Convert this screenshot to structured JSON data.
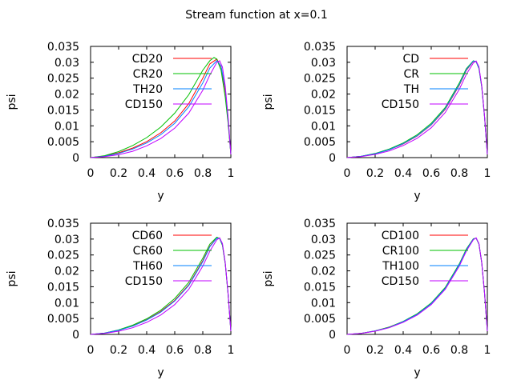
{
  "figure": {
    "title": "Stream function at x=0.1"
  },
  "chart_data": [
    {
      "type": "line",
      "xlabel": "y",
      "ylabel": "psi",
      "xlim": [
        0,
        1
      ],
      "ylim": [
        0,
        0.035
      ],
      "xticks": [
        "0",
        "0.2",
        "0.4",
        "0.6",
        "0.8",
        "1"
      ],
      "yticks": [
        "0",
        "0.005",
        "0.01",
        "0.015",
        "0.02",
        "0.025",
        "0.03",
        "0.035"
      ],
      "grid": false,
      "legend_position": "top-left",
      "series": [
        {
          "name": "CD20",
          "color": "#ff0000",
          "x": [
            0,
            0.1,
            0.2,
            0.3,
            0.4,
            0.5,
            0.6,
            0.7,
            0.8,
            0.85,
            0.9,
            0.93,
            0.96,
            0.98,
            1.0
          ],
          "y": [
            0,
            0.0005,
            0.0015,
            0.003,
            0.005,
            0.0078,
            0.0115,
            0.017,
            0.025,
            0.0295,
            0.031,
            0.0285,
            0.021,
            0.012,
            0.001
          ]
        },
        {
          "name": "CR20",
          "color": "#00c000",
          "x": [
            0,
            0.1,
            0.2,
            0.3,
            0.4,
            0.5,
            0.6,
            0.7,
            0.8,
            0.85,
            0.88,
            0.9,
            0.93,
            0.96,
            0.98,
            1.0
          ],
          "y": [
            0,
            0.0006,
            0.0019,
            0.0038,
            0.0063,
            0.0096,
            0.014,
            0.0198,
            0.0275,
            0.0305,
            0.0315,
            0.031,
            0.0275,
            0.019,
            0.011,
            0.001
          ]
        },
        {
          "name": "TH20",
          "color": "#0080ff",
          "x": [
            0,
            0.1,
            0.2,
            0.3,
            0.4,
            0.5,
            0.6,
            0.7,
            0.8,
            0.85,
            0.9,
            0.93,
            0.96,
            0.98,
            1.0
          ],
          "y": [
            0,
            0.0004,
            0.0013,
            0.0027,
            0.0046,
            0.0072,
            0.0108,
            0.016,
            0.0235,
            0.0282,
            0.0305,
            0.0288,
            0.0218,
            0.0125,
            0.001
          ]
        },
        {
          "name": "CD150",
          "color": "#c000ff",
          "x": [
            0,
            0.1,
            0.2,
            0.3,
            0.4,
            0.5,
            0.6,
            0.7,
            0.8,
            0.85,
            0.9,
            0.92,
            0.94,
            0.96,
            0.98,
            1.0
          ],
          "y": [
            0,
            0.0003,
            0.0009,
            0.002,
            0.0037,
            0.006,
            0.0093,
            0.014,
            0.0212,
            0.026,
            0.03,
            0.0305,
            0.0285,
            0.0225,
            0.013,
            0.001
          ]
        }
      ]
    },
    {
      "type": "line",
      "xlabel": "y",
      "ylabel": "psi",
      "xlim": [
        0,
        1
      ],
      "ylim": [
        0,
        0.035
      ],
      "xticks": [
        "0",
        "0.2",
        "0.4",
        "0.6",
        "0.8",
        "1"
      ],
      "yticks": [
        "0",
        "0.005",
        "0.01",
        "0.015",
        "0.02",
        "0.025",
        "0.03",
        "0.035"
      ],
      "grid": false,
      "legend_position": "top-left",
      "series": [
        {
          "name": "CD",
          "color": "#ff0000",
          "x": [
            0,
            0.1,
            0.2,
            0.3,
            0.4,
            0.5,
            0.6,
            0.7,
            0.8,
            0.85,
            0.9,
            0.92,
            0.94,
            0.96,
            0.98,
            1.0
          ],
          "y": [
            0,
            0.0004,
            0.0012,
            0.0025,
            0.0043,
            0.0068,
            0.0103,
            0.0152,
            0.0228,
            0.0275,
            0.0303,
            0.0302,
            0.0283,
            0.0225,
            0.013,
            0.001
          ]
        },
        {
          "name": "CR",
          "color": "#00c000",
          "x": [
            0,
            0.1,
            0.2,
            0.3,
            0.4,
            0.5,
            0.6,
            0.7,
            0.8,
            0.85,
            0.9,
            0.92,
            0.94,
            0.96,
            0.98,
            1.0
          ],
          "y": [
            0,
            0.0004,
            0.0013,
            0.0027,
            0.0046,
            0.0072,
            0.0108,
            0.0158,
            0.0235,
            0.028,
            0.0305,
            0.0302,
            0.028,
            0.0222,
            0.0128,
            0.001
          ]
        },
        {
          "name": "TH",
          "color": "#0080ff",
          "x": [
            0,
            0.1,
            0.2,
            0.3,
            0.4,
            0.5,
            0.6,
            0.7,
            0.8,
            0.85,
            0.9,
            0.92,
            0.94,
            0.96,
            0.98,
            1.0
          ],
          "y": [
            0,
            0.0004,
            0.0012,
            0.0025,
            0.0044,
            0.0069,
            0.0104,
            0.0154,
            0.023,
            0.0277,
            0.0304,
            0.0302,
            0.0282,
            0.0224,
            0.0129,
            0.001
          ]
        },
        {
          "name": "CD150",
          "color": "#c000ff",
          "x": [
            0,
            0.1,
            0.2,
            0.3,
            0.4,
            0.5,
            0.6,
            0.7,
            0.8,
            0.85,
            0.9,
            0.92,
            0.94,
            0.96,
            0.98,
            1.0
          ],
          "y": [
            0,
            0.0003,
            0.001,
            0.0021,
            0.0038,
            0.0061,
            0.0094,
            0.0142,
            0.0215,
            0.0262,
            0.0298,
            0.0304,
            0.0286,
            0.0226,
            0.0131,
            0.001
          ]
        }
      ]
    },
    {
      "type": "line",
      "xlabel": "y",
      "ylabel": "psi",
      "xlim": [
        0,
        1
      ],
      "ylim": [
        0,
        0.035
      ],
      "xticks": [
        "0",
        "0.2",
        "0.4",
        "0.6",
        "0.8",
        "1"
      ],
      "yticks": [
        "0",
        "0.005",
        "0.01",
        "0.015",
        "0.02",
        "0.025",
        "0.03",
        "0.035"
      ],
      "grid": false,
      "legend_position": "top-left",
      "series": [
        {
          "name": "CD60",
          "color": "#ff0000",
          "x": [
            0,
            0.1,
            0.2,
            0.3,
            0.4,
            0.5,
            0.6,
            0.7,
            0.8,
            0.85,
            0.9,
            0.92,
            0.94,
            0.96,
            0.98,
            1.0
          ],
          "y": [
            0,
            0.0004,
            0.0013,
            0.0027,
            0.0046,
            0.0072,
            0.0107,
            0.0156,
            0.0232,
            0.0278,
            0.0304,
            0.0302,
            0.0282,
            0.0224,
            0.0129,
            0.001
          ]
        },
        {
          "name": "CR60",
          "color": "#00c000",
          "x": [
            0,
            0.1,
            0.2,
            0.3,
            0.4,
            0.5,
            0.6,
            0.7,
            0.8,
            0.85,
            0.9,
            0.92,
            0.94,
            0.96,
            0.98,
            1.0
          ],
          "y": [
            0,
            0.0004,
            0.0014,
            0.0029,
            0.0049,
            0.0076,
            0.0113,
            0.0164,
            0.024,
            0.0284,
            0.0306,
            0.0302,
            0.028,
            0.0222,
            0.0128,
            0.001
          ]
        },
        {
          "name": "TH60",
          "color": "#0080ff",
          "x": [
            0,
            0.1,
            0.2,
            0.3,
            0.4,
            0.5,
            0.6,
            0.7,
            0.8,
            0.85,
            0.9,
            0.92,
            0.94,
            0.96,
            0.98,
            1.0
          ],
          "y": [
            0,
            0.0004,
            0.0013,
            0.0026,
            0.0045,
            0.007,
            0.0105,
            0.0154,
            0.0229,
            0.0276,
            0.0303,
            0.0302,
            0.0283,
            0.0225,
            0.013,
            0.001
          ]
        },
        {
          "name": "CD150",
          "color": "#c000ff",
          "x": [
            0,
            0.1,
            0.2,
            0.3,
            0.4,
            0.5,
            0.6,
            0.7,
            0.8,
            0.85,
            0.9,
            0.92,
            0.94,
            0.96,
            0.98,
            1.0
          ],
          "y": [
            0,
            0.0003,
            0.001,
            0.0021,
            0.0038,
            0.0061,
            0.0094,
            0.0142,
            0.0215,
            0.0262,
            0.0298,
            0.0304,
            0.0286,
            0.0226,
            0.0131,
            0.001
          ]
        }
      ]
    },
    {
      "type": "line",
      "xlabel": "y",
      "ylabel": "psi",
      "xlim": [
        0,
        1
      ],
      "ylim": [
        0,
        0.035
      ],
      "xticks": [
        "0",
        "0.2",
        "0.4",
        "0.6",
        "0.8",
        "1"
      ],
      "yticks": [
        "0",
        "0.005",
        "0.01",
        "0.015",
        "0.02",
        "0.025",
        "0.03",
        "0.035"
      ],
      "grid": false,
      "legend_position": "top-left",
      "series": [
        {
          "name": "CD100",
          "color": "#ff0000",
          "x": [
            0,
            0.1,
            0.2,
            0.3,
            0.4,
            0.5,
            0.6,
            0.7,
            0.8,
            0.85,
            0.9,
            0.92,
            0.94,
            0.96,
            0.98,
            1.0
          ],
          "y": [
            0,
            0.0003,
            0.0011,
            0.0023,
            0.004,
            0.0064,
            0.0098,
            0.0146,
            0.022,
            0.0267,
            0.03,
            0.0303,
            0.0285,
            0.0226,
            0.013,
            0.001
          ]
        },
        {
          "name": "CR100",
          "color": "#00c000",
          "x": [
            0,
            0.1,
            0.2,
            0.3,
            0.4,
            0.5,
            0.6,
            0.7,
            0.8,
            0.85,
            0.9,
            0.92,
            0.94,
            0.96,
            0.98,
            1.0
          ],
          "y": [
            0,
            0.0003,
            0.0011,
            0.0023,
            0.0041,
            0.0065,
            0.0099,
            0.0148,
            0.0222,
            0.0269,
            0.0301,
            0.0303,
            0.0284,
            0.0225,
            0.013,
            0.001
          ]
        },
        {
          "name": "TH100",
          "color": "#0080ff",
          "x": [
            0,
            0.1,
            0.2,
            0.3,
            0.4,
            0.5,
            0.6,
            0.7,
            0.8,
            0.85,
            0.9,
            0.92,
            0.94,
            0.96,
            0.98,
            1.0
          ],
          "y": [
            0,
            0.0003,
            0.0011,
            0.0022,
            0.004,
            0.0063,
            0.0097,
            0.0145,
            0.0219,
            0.0266,
            0.03,
            0.0303,
            0.0285,
            0.0226,
            0.013,
            0.001
          ]
        },
        {
          "name": "CD150",
          "color": "#c000ff",
          "x": [
            0,
            0.1,
            0.2,
            0.3,
            0.4,
            0.5,
            0.6,
            0.7,
            0.8,
            0.85,
            0.9,
            0.92,
            0.94,
            0.96,
            0.98,
            1.0
          ],
          "y": [
            0,
            0.0003,
            0.001,
            0.0021,
            0.0038,
            0.0061,
            0.0094,
            0.0142,
            0.0215,
            0.0262,
            0.0298,
            0.0304,
            0.0286,
            0.0226,
            0.0131,
            0.001
          ]
        }
      ]
    }
  ]
}
